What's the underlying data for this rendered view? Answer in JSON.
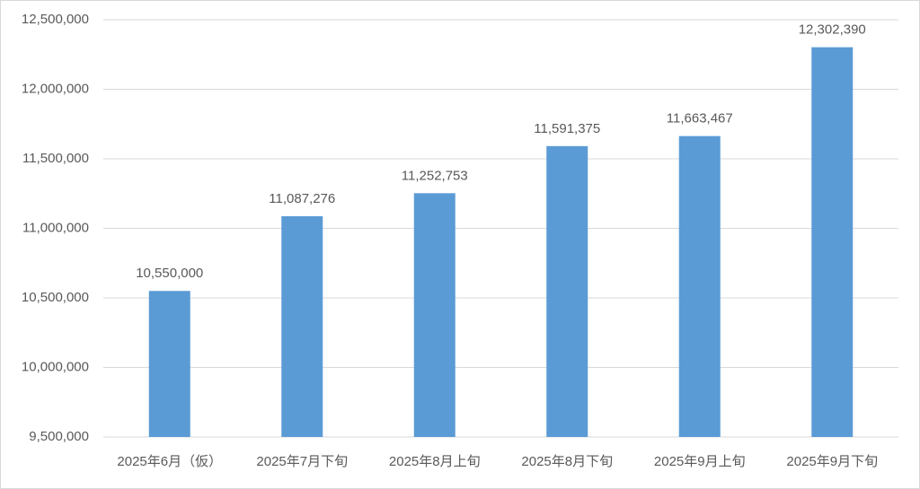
{
  "chart_data": {
    "type": "bar",
    "categories": [
      "2025年6月（仮）",
      "2025年7月下旬",
      "2025年8月上旬",
      "2025年8月下旬",
      "2025年9月上旬",
      "2025年9月下旬"
    ],
    "values": [
      10550000,
      11087276,
      11252753,
      11591375,
      11663467,
      12302390
    ],
    "value_labels": [
      "10,550,000",
      "11,087,276",
      "11,252,753",
      "11,591,375",
      "11,663,467",
      "12,302,390"
    ],
    "color": "#5b9bd5",
    "ylim": [
      9500000,
      12500000
    ],
    "yticks": [
      {
        "value": 9500000,
        "label": "9,500,000"
      },
      {
        "value": 10000000,
        "label": "10,000,000"
      },
      {
        "value": 10500000,
        "label": "10,500,000"
      },
      {
        "value": 11000000,
        "label": "11,000,000"
      },
      {
        "value": 11500000,
        "label": "11,500,000"
      },
      {
        "value": 12000000,
        "label": "12,000,000"
      },
      {
        "value": 12500000,
        "label": "12,500,000"
      }
    ],
    "grid": true
  }
}
